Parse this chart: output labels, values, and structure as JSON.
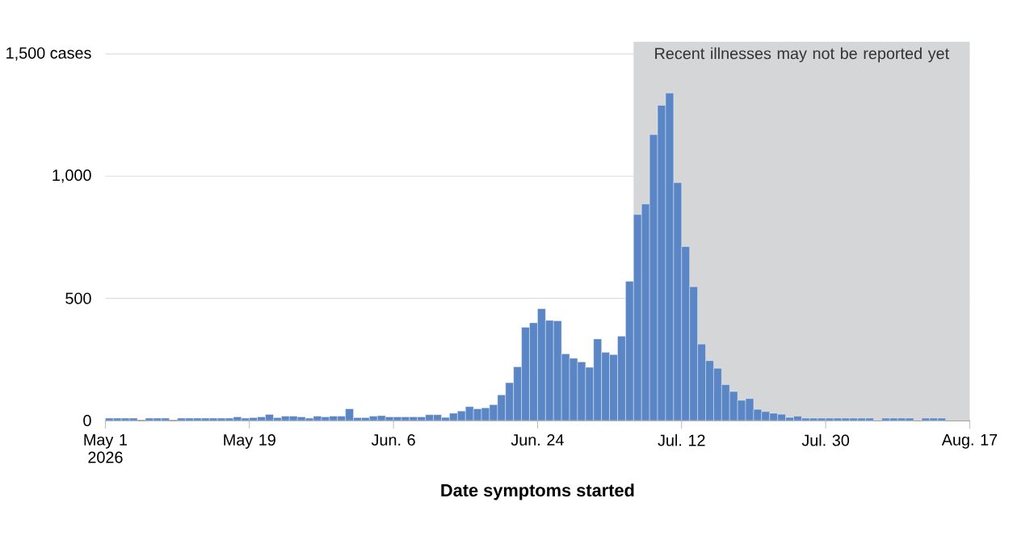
{
  "chart_data": {
    "type": "bar",
    "xlabel": "Date symptoms started",
    "color": "#5b86c5",
    "x": [
      "2026-05-01",
      "2026-05-02",
      "2026-05-03",
      "2026-05-04",
      "2026-05-05",
      "2026-05-06",
      "2026-05-07",
      "2026-05-08",
      "2026-05-09",
      "2026-05-10",
      "2026-05-11",
      "2026-05-12",
      "2026-05-13",
      "2026-05-14",
      "2026-05-15",
      "2026-05-16",
      "2026-05-17",
      "2026-05-18",
      "2026-05-19",
      "2026-05-20",
      "2026-05-21",
      "2026-05-22",
      "2026-05-23",
      "2026-05-24",
      "2026-05-25",
      "2026-05-26",
      "2026-05-27",
      "2026-05-28",
      "2026-05-29",
      "2026-05-30",
      "2026-05-31",
      "2026-06-01",
      "2026-06-02",
      "2026-06-03",
      "2026-06-04",
      "2026-06-05",
      "2026-06-06",
      "2026-06-07",
      "2026-06-08",
      "2026-06-09",
      "2026-06-10",
      "2026-06-11",
      "2026-06-12",
      "2026-06-13",
      "2026-06-14",
      "2026-06-15",
      "2026-06-16",
      "2026-06-17",
      "2026-06-18",
      "2026-06-19",
      "2026-06-20",
      "2026-06-21",
      "2026-06-22",
      "2026-06-23",
      "2026-06-24",
      "2026-06-25",
      "2026-06-26",
      "2026-06-27",
      "2026-06-28",
      "2026-06-29",
      "2026-06-30",
      "2026-07-01",
      "2026-07-02",
      "2026-07-03",
      "2026-07-04",
      "2026-07-05",
      "2026-07-06",
      "2026-07-07",
      "2026-07-08",
      "2026-07-09",
      "2026-07-10",
      "2026-07-11",
      "2026-07-12",
      "2026-07-13",
      "2026-07-14",
      "2026-07-15",
      "2026-07-16",
      "2026-07-17",
      "2026-07-18",
      "2026-07-19",
      "2026-07-20",
      "2026-07-21",
      "2026-07-22",
      "2026-07-23",
      "2026-07-24",
      "2026-07-25",
      "2026-07-26",
      "2026-07-27",
      "2026-07-28",
      "2026-07-29",
      "2026-07-30",
      "2026-07-31",
      "2026-08-01",
      "2026-08-02",
      "2026-08-03",
      "2026-08-04",
      "2026-08-05",
      "2026-08-06",
      "2026-08-07",
      "2026-08-08",
      "2026-08-09",
      "2026-08-10",
      "2026-08-11",
      "2026-08-12",
      "2026-08-13",
      "2026-08-14",
      "2026-08-15",
      "2026-08-16"
    ],
    "values": [
      10,
      10,
      10,
      10,
      0,
      10,
      10,
      10,
      0,
      10,
      10,
      10,
      10,
      10,
      10,
      10,
      15,
      10,
      12,
      15,
      25,
      12,
      18,
      18,
      15,
      10,
      18,
      15,
      18,
      18,
      48,
      12,
      12,
      18,
      20,
      15,
      15,
      15,
      15,
      15,
      24,
      24,
      13,
      30,
      39,
      57,
      48,
      52,
      65,
      105,
      155,
      220,
      382,
      400,
      458,
      410,
      408,
      273,
      255,
      240,
      218,
      334,
      279,
      270,
      345,
      570,
      843,
      886,
      1170,
      1290,
      1340,
      974,
      712,
      548,
      313,
      245,
      214,
      147,
      119,
      83,
      90,
      46,
      37,
      30,
      26,
      13,
      18,
      10,
      10,
      10,
      10,
      10,
      10,
      10,
      10,
      10,
      0,
      10,
      10,
      10,
      10,
      0,
      10,
      10,
      10,
      0,
      0,
      0
    ],
    "xlim": [
      "2026-05-01",
      "2026-08-17"
    ],
    "xticks": [
      {
        "value": "2026-05-01",
        "label": "May 1 2026"
      },
      {
        "value": "2026-05-19",
        "label": "May 19"
      },
      {
        "value": "2026-06-06",
        "label": "Jun. 6"
      },
      {
        "value": "2026-06-24",
        "label": "Jun. 24"
      },
      {
        "value": "2026-07-12",
        "label": "Jul. 12"
      },
      {
        "value": "2026-07-30",
        "label": "Jul. 30"
      },
      {
        "value": "2026-08-17",
        "label": "Aug. 17"
      }
    ],
    "ylim": [
      0,
      1550
    ],
    "yticks": [
      0,
      500,
      {
        "value": 1000,
        "label": "1,000"
      },
      {
        "value": 1500,
        "label": "1,500 cases"
      }
    ],
    "grid": "y",
    "bands": [
      {
        "axis": "x",
        "from": "2026-07-06",
        "to": "2026-08-17",
        "label": "Recent illnesses may not be reported yet",
        "color": "#d5d6d8"
      }
    ]
  }
}
